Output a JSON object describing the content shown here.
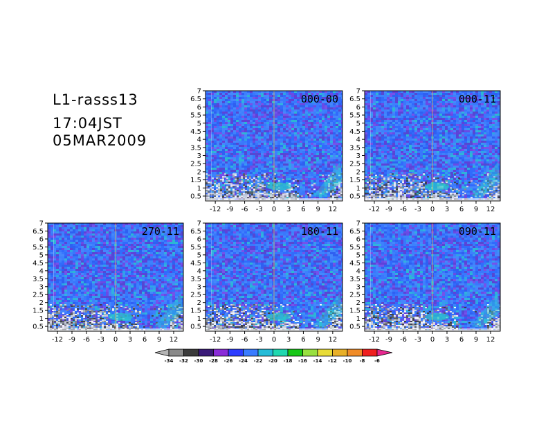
{
  "header": {
    "station": "L1-rasss13",
    "time": "17:04JST",
    "date": "05MAR2009"
  },
  "chart_data": {
    "type": "heatmap",
    "panels": [
      {
        "label": "000-00"
      },
      {
        "label": "000-11"
      },
      {
        "label": "270-11"
      },
      {
        "label": "180-11"
      },
      {
        "label": "090-11"
      }
    ],
    "x_ticks": [
      "-12",
      "-9",
      "-6",
      "-3",
      "0",
      "3",
      "6",
      "9",
      "12"
    ],
    "y_ticks": [
      "0.5",
      "1",
      "1.5",
      "2",
      "2.5",
      "3",
      "3.5",
      "4",
      "4.5",
      "5",
      "5.5",
      "6",
      "6.5",
      "7"
    ],
    "xlim": [
      -14,
      14
    ],
    "ylim": [
      0.2,
      7
    ],
    "colorbar": {
      "labels": [
        "-34",
        "-32",
        "-30",
        "-28",
        "-26",
        "-24",
        "-22",
        "-20",
        "-18",
        "-16",
        "-14",
        "-12",
        "-10",
        "-8",
        "-6"
      ],
      "colors": [
        "#b4b4b4",
        "#8a8a8a",
        "#3c3c3c",
        "#3a1a78",
        "#8a2bd8",
        "#2c3cff",
        "#3a7cff",
        "#25bcd8",
        "#20d8b0",
        "#18c818",
        "#98e040",
        "#e8dc38",
        "#e8b028",
        "#f08c28",
        "#f02020",
        "#e82890"
      ]
    }
  }
}
